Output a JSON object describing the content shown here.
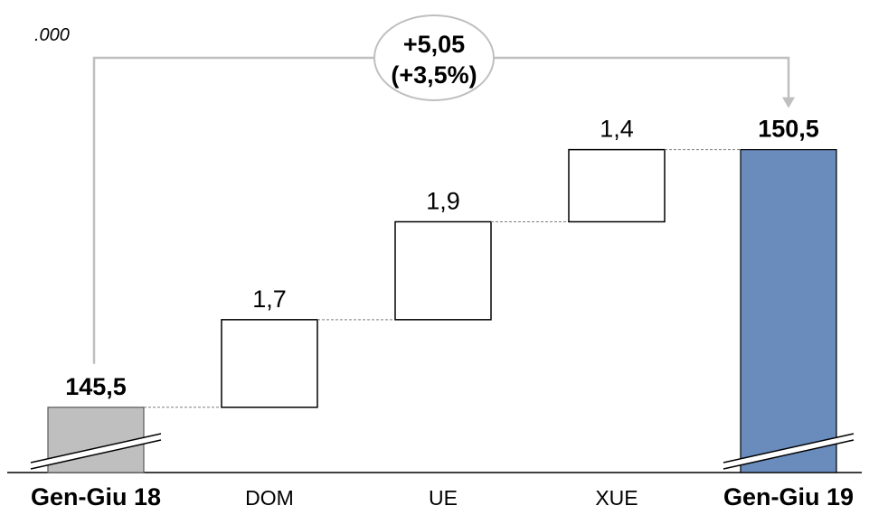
{
  "chart_data": {
    "type": "waterfall",
    "unit": ".000",
    "categories": [
      "Gen-Giu 18",
      "DOM",
      "UE",
      "XUE",
      "Gen-Giu 19"
    ],
    "start": {
      "label": "Gen-Giu 18",
      "value": 145.5,
      "value_label": "145,5",
      "color": "#bfbfbf",
      "axis_break": true
    },
    "steps": [
      {
        "label": "DOM",
        "value": 1.7,
        "value_label": "1,7"
      },
      {
        "label": "UE",
        "value": 1.9,
        "value_label": "1,9"
      },
      {
        "label": "XUE",
        "value": 1.4,
        "value_label": "1,4"
      }
    ],
    "end": {
      "label": "Gen-Giu 19",
      "value": 150.5,
      "value_label": "150,5",
      "color": "#6a8cbc",
      "axis_break": true
    },
    "delta": {
      "line1": "+5,05",
      "line2": "(+3,5%)"
    },
    "ylim": [
      144.9,
      151.3
    ],
    "grid": false,
    "legend": "none"
  }
}
